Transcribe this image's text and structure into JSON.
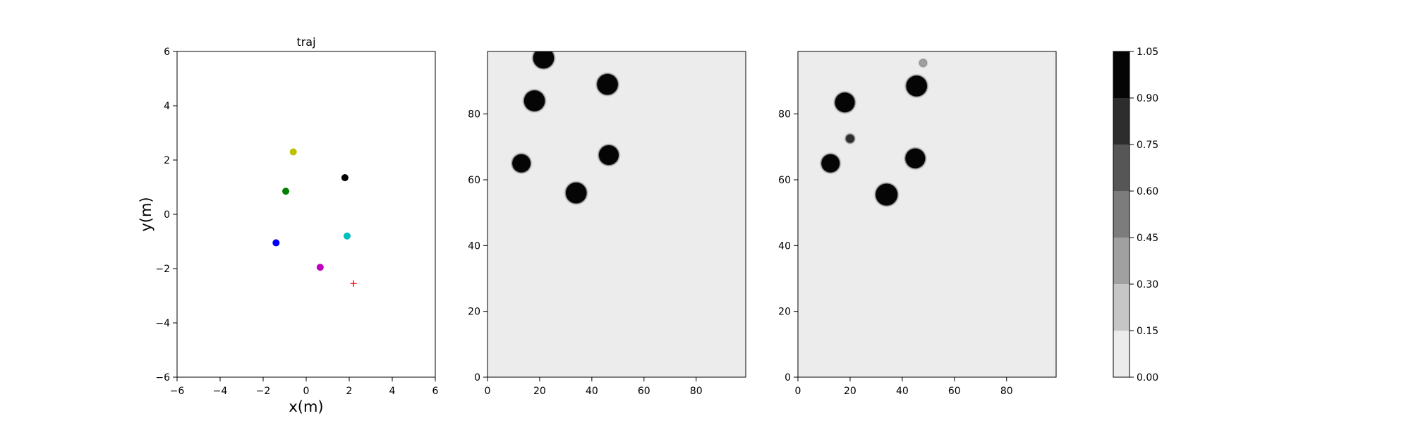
{
  "chart_data": [
    {
      "type": "scatter",
      "title": "traj",
      "xlabel": "x(m)",
      "ylabel": "y(m)",
      "xlim": [
        -6,
        6
      ],
      "ylim": [
        -6,
        6
      ],
      "xticks": [
        "−6",
        "−4",
        "−2",
        "0",
        "2",
        "4",
        "6"
      ],
      "yticks": [
        "−6",
        "−4",
        "−2",
        "0",
        "2",
        "4",
        "6"
      ],
      "grid": false,
      "points": [
        {
          "x": -0.6,
          "y": 2.3,
          "color": "#bfbf00",
          "marker": "circle"
        },
        {
          "x": 1.8,
          "y": 1.35,
          "color": "#000000",
          "marker": "circle"
        },
        {
          "x": -0.95,
          "y": 0.85,
          "color": "#008000",
          "marker": "circle"
        },
        {
          "x": 1.9,
          "y": -0.8,
          "color": "#00bfbf",
          "marker": "circle"
        },
        {
          "x": -1.4,
          "y": -1.05,
          "color": "#0000ff",
          "marker": "circle"
        },
        {
          "x": 0.65,
          "y": -1.95,
          "color": "#bf00bf",
          "marker": "circle"
        },
        {
          "x": 2.2,
          "y": -2.55,
          "color": "#ff0000",
          "marker": "plus"
        }
      ]
    },
    {
      "type": "heatmap",
      "xlim": [
        0,
        99
      ],
      "ylim": [
        0,
        99
      ],
      "xticks": [
        "0",
        "20",
        "40",
        "60",
        "80"
      ],
      "yticks": [
        "0",
        "20",
        "40",
        "60",
        "80"
      ],
      "background_value": 0.0,
      "blobs": [
        {
          "x": 21.5,
          "y": 97.0,
          "r": 4.0,
          "value": 1.0
        },
        {
          "x": 18.0,
          "y": 84.0,
          "r": 4.0,
          "value": 1.0
        },
        {
          "x": 46.0,
          "y": 89.0,
          "r": 4.0,
          "value": 1.0
        },
        {
          "x": 13.0,
          "y": 65.0,
          "r": 3.5,
          "value": 1.0
        },
        {
          "x": 46.5,
          "y": 67.5,
          "r": 3.8,
          "value": 1.0
        },
        {
          "x": 34.0,
          "y": 56.0,
          "r": 4.0,
          "value": 1.0
        }
      ]
    },
    {
      "type": "heatmap",
      "xlim": [
        0,
        99
      ],
      "ylim": [
        0,
        99
      ],
      "xticks": [
        "0",
        "20",
        "40",
        "60",
        "80"
      ],
      "yticks": [
        "0",
        "20",
        "40",
        "60",
        "80"
      ],
      "background_value": 0.0,
      "blobs": [
        {
          "x": 48.0,
          "y": 95.5,
          "r": 1.2,
          "value": 0.4
        },
        {
          "x": 18.0,
          "y": 83.5,
          "r": 3.8,
          "value": 1.0
        },
        {
          "x": 45.5,
          "y": 88.5,
          "r": 4.0,
          "value": 1.0
        },
        {
          "x": 20.0,
          "y": 72.5,
          "r": 1.6,
          "value": 0.75
        },
        {
          "x": 12.5,
          "y": 65.0,
          "r": 3.5,
          "value": 1.0
        },
        {
          "x": 45.0,
          "y": 66.5,
          "r": 3.8,
          "value": 1.0
        },
        {
          "x": 34.0,
          "y": 55.5,
          "r": 4.2,
          "value": 1.0
        }
      ]
    },
    {
      "type": "colorbar",
      "levels": [
        0.0,
        0.15,
        0.3,
        0.45,
        0.6,
        0.75,
        0.9,
        1.05
      ],
      "tick_labels": [
        "0.00",
        "0.15",
        "0.30",
        "0.45",
        "0.60",
        "0.75",
        "0.90",
        "1.05"
      ],
      "colors": [
        "#ececec",
        "#c6c6c6",
        "#a0a0a0",
        "#7c7c7c",
        "#565656",
        "#2d2d2d",
        "#050505"
      ]
    }
  ]
}
